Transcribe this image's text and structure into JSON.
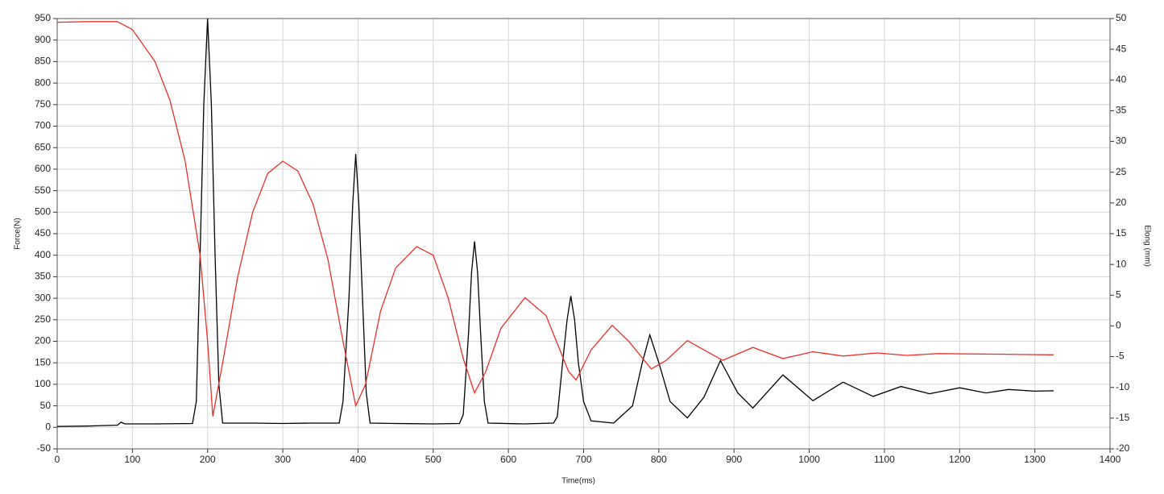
{
  "chart_data": {
    "type": "line",
    "x_label": "Time(ms)",
    "y_label": "Force(N)",
    "y2_label": "Elong (mm)",
    "xlim": [
      0,
      1400
    ],
    "xticks": [
      0,
      100,
      200,
      300,
      400,
      500,
      600,
      700,
      800,
      900,
      1000,
      1100,
      1200,
      1300,
      1400
    ],
    "ylim": [
      -50,
      950
    ],
    "yticks": [
      -50,
      0,
      50,
      100,
      150,
      200,
      250,
      300,
      350,
      400,
      450,
      500,
      550,
      600,
      650,
      700,
      750,
      800,
      850,
      900,
      950
    ],
    "y2lim": [
      -20,
      50
    ],
    "y2ticks": [
      -20,
      -15,
      -10,
      -5,
      0,
      5,
      10,
      15,
      20,
      25,
      30,
      35,
      40,
      45,
      50
    ],
    "grid": true,
    "series": [
      {
        "color": "#000000",
        "x": [
          0,
          40,
          80,
          85,
          90,
          130,
          180,
          185,
          190,
          195,
          200,
          205,
          210,
          215,
          220,
          260,
          300,
          340,
          375,
          380,
          388,
          393,
          397,
          401,
          406,
          411,
          416,
          450,
          500,
          535,
          540,
          547,
          551,
          555,
          559,
          563,
          568,
          573,
          620,
          660,
          665,
          672,
          678,
          683,
          688,
          693,
          700,
          710,
          740,
          765,
          778,
          788,
          800,
          815,
          838,
          860,
          882,
          905,
          925,
          965,
          1005,
          1045,
          1085,
          1122,
          1160,
          1200,
          1235,
          1265,
          1300,
          1325
        ],
        "values": [
          2,
          3,
          5,
          12,
          8,
          8,
          9,
          60,
          400,
          750,
          950,
          750,
          400,
          100,
          10,
          10,
          9,
          10,
          10,
          60,
          300,
          520,
          635,
          520,
          300,
          80,
          10,
          9,
          8,
          9,
          30,
          220,
          360,
          432,
          360,
          220,
          60,
          10,
          8,
          10,
          25,
          150,
          250,
          305,
          250,
          150,
          60,
          15,
          10,
          50,
          150,
          215,
          150,
          60,
          22,
          70,
          155,
          80,
          45,
          122,
          62,
          105,
          72,
          95,
          78,
          92,
          80,
          88,
          84,
          85
        ]
      },
      {
        "color": "#e8302b",
        "axis": "y2",
        "x": [
          0,
          40,
          80,
          100,
          130,
          150,
          170,
          190,
          200,
          207,
          220,
          240,
          260,
          280,
          300,
          320,
          340,
          360,
          380,
          397,
          410,
          430,
          450,
          478,
          500,
          520,
          540,
          555,
          570,
          590,
          622,
          650,
          680,
          690,
          710,
          738,
          760,
          790,
          810,
          838,
          860,
          885,
          925,
          965,
          1005,
          1045,
          1090,
          1130,
          1170,
          1250,
          1325
        ],
        "values": [
          49.4,
          49.5,
          49.5,
          48.2,
          43,
          36.7,
          26.9,
          11.5,
          -2.5,
          -14.7,
          -6,
          8,
          18.5,
          24.8,
          26.8,
          25.2,
          19.9,
          10.8,
          -2.5,
          -13,
          -9.5,
          2.4,
          9.4,
          12.9,
          11.5,
          4.5,
          -5.3,
          -10.9,
          -7.4,
          -0.4,
          4.6,
          1.7,
          -7.4,
          -8.8,
          -3.9,
          0.1,
          -2.5,
          -7,
          -5.6,
          -2.4,
          -3.9,
          -5.6,
          -3.5,
          -5.3,
          -4.2,
          -4.9,
          -4.4,
          -4.8,
          -4.5,
          -4.6,
          -4.7
        ]
      }
    ]
  }
}
